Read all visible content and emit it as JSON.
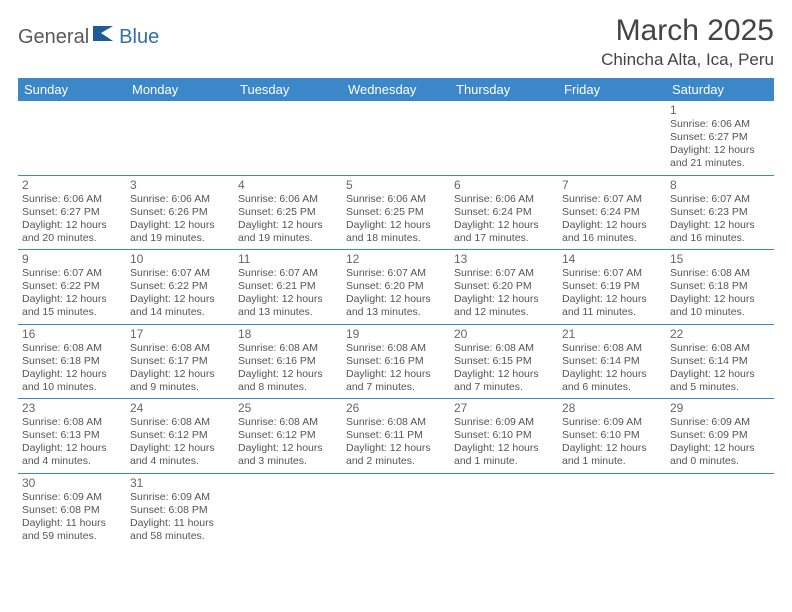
{
  "brand": {
    "part1": "General",
    "part2": "Blue"
  },
  "title": "March 2025",
  "location": "Chincha Alta, Ica, Peru",
  "colors": {
    "header_bg": "#3b87c8",
    "header_text": "#ffffff",
    "cell_border": "#3b87c8",
    "text": "#555555",
    "logo_gray": "#5a5a5a",
    "logo_blue": "#2f6fab"
  },
  "weekdays": [
    "Sunday",
    "Monday",
    "Tuesday",
    "Wednesday",
    "Thursday",
    "Friday",
    "Saturday"
  ],
  "weeks": [
    [
      null,
      null,
      null,
      null,
      null,
      null,
      {
        "n": "1",
        "sr": "6:06 AM",
        "ss": "6:27 PM",
        "dl": "12 hours and 21 minutes."
      }
    ],
    [
      {
        "n": "2",
        "sr": "6:06 AM",
        "ss": "6:27 PM",
        "dl": "12 hours and 20 minutes."
      },
      {
        "n": "3",
        "sr": "6:06 AM",
        "ss": "6:26 PM",
        "dl": "12 hours and 19 minutes."
      },
      {
        "n": "4",
        "sr": "6:06 AM",
        "ss": "6:25 PM",
        "dl": "12 hours and 19 minutes."
      },
      {
        "n": "5",
        "sr": "6:06 AM",
        "ss": "6:25 PM",
        "dl": "12 hours and 18 minutes."
      },
      {
        "n": "6",
        "sr": "6:06 AM",
        "ss": "6:24 PM",
        "dl": "12 hours and 17 minutes."
      },
      {
        "n": "7",
        "sr": "6:07 AM",
        "ss": "6:24 PM",
        "dl": "12 hours and 16 minutes."
      },
      {
        "n": "8",
        "sr": "6:07 AM",
        "ss": "6:23 PM",
        "dl": "12 hours and 16 minutes."
      }
    ],
    [
      {
        "n": "9",
        "sr": "6:07 AM",
        "ss": "6:22 PM",
        "dl": "12 hours and 15 minutes."
      },
      {
        "n": "10",
        "sr": "6:07 AM",
        "ss": "6:22 PM",
        "dl": "12 hours and 14 minutes."
      },
      {
        "n": "11",
        "sr": "6:07 AM",
        "ss": "6:21 PM",
        "dl": "12 hours and 13 minutes."
      },
      {
        "n": "12",
        "sr": "6:07 AM",
        "ss": "6:20 PM",
        "dl": "12 hours and 13 minutes."
      },
      {
        "n": "13",
        "sr": "6:07 AM",
        "ss": "6:20 PM",
        "dl": "12 hours and 12 minutes."
      },
      {
        "n": "14",
        "sr": "6:07 AM",
        "ss": "6:19 PM",
        "dl": "12 hours and 11 minutes."
      },
      {
        "n": "15",
        "sr": "6:08 AM",
        "ss": "6:18 PM",
        "dl": "12 hours and 10 minutes."
      }
    ],
    [
      {
        "n": "16",
        "sr": "6:08 AM",
        "ss": "6:18 PM",
        "dl": "12 hours and 10 minutes."
      },
      {
        "n": "17",
        "sr": "6:08 AM",
        "ss": "6:17 PM",
        "dl": "12 hours and 9 minutes."
      },
      {
        "n": "18",
        "sr": "6:08 AM",
        "ss": "6:16 PM",
        "dl": "12 hours and 8 minutes."
      },
      {
        "n": "19",
        "sr": "6:08 AM",
        "ss": "6:16 PM",
        "dl": "12 hours and 7 minutes."
      },
      {
        "n": "20",
        "sr": "6:08 AM",
        "ss": "6:15 PM",
        "dl": "12 hours and 7 minutes."
      },
      {
        "n": "21",
        "sr": "6:08 AM",
        "ss": "6:14 PM",
        "dl": "12 hours and 6 minutes."
      },
      {
        "n": "22",
        "sr": "6:08 AM",
        "ss": "6:14 PM",
        "dl": "12 hours and 5 minutes."
      }
    ],
    [
      {
        "n": "23",
        "sr": "6:08 AM",
        "ss": "6:13 PM",
        "dl": "12 hours and 4 minutes."
      },
      {
        "n": "24",
        "sr": "6:08 AM",
        "ss": "6:12 PM",
        "dl": "12 hours and 4 minutes."
      },
      {
        "n": "25",
        "sr": "6:08 AM",
        "ss": "6:12 PM",
        "dl": "12 hours and 3 minutes."
      },
      {
        "n": "26",
        "sr": "6:08 AM",
        "ss": "6:11 PM",
        "dl": "12 hours and 2 minutes."
      },
      {
        "n": "27",
        "sr": "6:09 AM",
        "ss": "6:10 PM",
        "dl": "12 hours and 1 minute."
      },
      {
        "n": "28",
        "sr": "6:09 AM",
        "ss": "6:10 PM",
        "dl": "12 hours and 1 minute."
      },
      {
        "n": "29",
        "sr": "6:09 AM",
        "ss": "6:09 PM",
        "dl": "12 hours and 0 minutes."
      }
    ],
    [
      {
        "n": "30",
        "sr": "6:09 AM",
        "ss": "6:08 PM",
        "dl": "11 hours and 59 minutes."
      },
      {
        "n": "31",
        "sr": "6:09 AM",
        "ss": "6:08 PM",
        "dl": "11 hours and 58 minutes."
      },
      null,
      null,
      null,
      null,
      null
    ]
  ],
  "labels": {
    "sunrise": "Sunrise:",
    "sunset": "Sunset:",
    "daylight": "Daylight:"
  }
}
